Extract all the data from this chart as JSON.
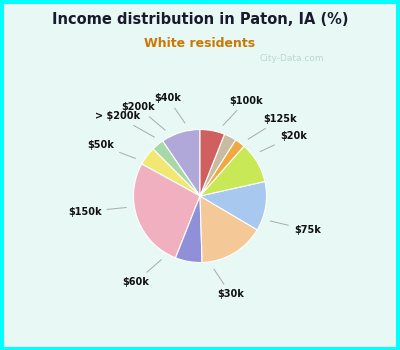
{
  "title": "Income distribution in Paton, IA (%)",
  "subtitle": "White residents",
  "title_color": "#1a1a2e",
  "subtitle_color": "#cc7700",
  "background_outer": "#00ffff",
  "background_inner_top": "#e0f8f8",
  "background_inner_bottom": "#d8f0e8",
  "labels": [
    "$100k",
    "$125k",
    "$20k",
    "$75k",
    "$30k",
    "$60k",
    "$150k",
    "$50k",
    "> $200k",
    "$200k",
    "$40k"
  ],
  "values": [
    9.5,
    3.0,
    4.5,
    27.0,
    6.5,
    16.0,
    12.0,
    10.0,
    2.5,
    3.0,
    6.0
  ],
  "colors": [
    "#b0a8d8",
    "#a8d8a8",
    "#f0e870",
    "#f0b0c0",
    "#9090d8",
    "#f5c898",
    "#a8c8f0",
    "#c8e855",
    "#f0a840",
    "#c8bca0",
    "#d06060"
  ],
  "watermark": "City-Data.com",
  "startangle": 90
}
